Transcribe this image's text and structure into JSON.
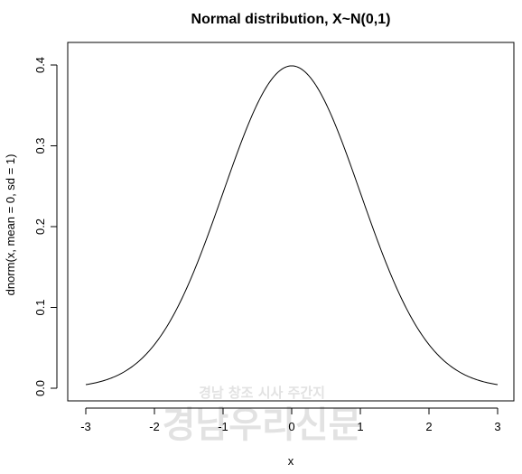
{
  "chart_data": {
    "type": "line",
    "title": "Normal distribution, X~N(0,1)",
    "xlabel": "x",
    "ylabel": "dnorm(x, mean = 0, sd = 1)",
    "xlim": [
      -3,
      3
    ],
    "ylim": [
      0,
      0.4
    ],
    "x_ticks": [
      -3,
      -2,
      -1,
      0,
      1,
      2,
      3
    ],
    "y_ticks": [
      0.0,
      0.1,
      0.2,
      0.3,
      0.4
    ],
    "x_tick_labels": [
      "-3",
      "-2",
      "-1",
      "0",
      "1",
      "2",
      "3"
    ],
    "y_tick_labels": [
      "0.0",
      "0.1",
      "0.2",
      "0.3",
      "0.4"
    ],
    "grid": false,
    "series": [
      {
        "x": [
          -3.0,
          -2.75,
          -2.5,
          -2.25,
          -2.0,
          -1.75,
          -1.5,
          -1.25,
          -1.0,
          -0.75,
          -0.5,
          -0.25,
          0.0,
          0.25,
          0.5,
          0.75,
          1.0,
          1.25,
          1.5,
          1.75,
          2.0,
          2.25,
          2.5,
          2.75,
          3.0
        ],
        "y": [
          0.0044,
          0.0091,
          0.0175,
          0.0317,
          0.054,
          0.0863,
          0.1295,
          0.1826,
          0.242,
          0.3011,
          0.3521,
          0.3867,
          0.3989,
          0.3867,
          0.3521,
          0.3011,
          0.242,
          0.1826,
          0.1295,
          0.0863,
          0.054,
          0.0317,
          0.0175,
          0.0091,
          0.0044
        ]
      }
    ]
  },
  "watermark": {
    "line1": "경남 창조 시사 주간지",
    "line2": "경남우리신문"
  }
}
